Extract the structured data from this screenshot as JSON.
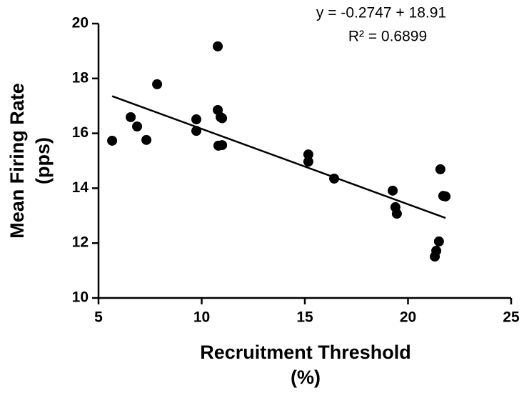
{
  "chart_data": {
    "type": "scatter",
    "annotations": [
      "y = -0.2747 + 18.91",
      "R² = 0.6899"
    ],
    "xlabel": [
      "Recruitment Threshold",
      "(%)"
    ],
    "ylabel": [
      "Mean Firing Rate",
      "(pps)"
    ],
    "x": [
      5.66,
      6.56,
      6.87,
      7.32,
      7.84,
      9.74,
      9.74,
      10.78,
      10.78,
      10.92,
      10.99,
      10.81,
      10.99,
      15.17,
      15.17,
      16.42,
      19.26,
      19.39,
      19.46,
      21.57,
      21.5,
      21.37,
      21.3,
      21.71,
      21.82
    ],
    "values": [
      15.73,
      16.59,
      16.25,
      15.76,
      17.79,
      16.51,
      16.09,
      19.17,
      16.85,
      16.59,
      16.55,
      15.55,
      15.57,
      15.23,
      14.97,
      14.35,
      13.91,
      13.31,
      13.07,
      14.69,
      12.06,
      11.72,
      11.51,
      13.72,
      13.7
    ],
    "color": "#000000",
    "fit": {
      "slope": -0.2747,
      "intercept": 18.91
    },
    "xlim": [
      5,
      25
    ],
    "xticks": [
      5,
      10,
      15,
      20,
      25
    ],
    "ylim": [
      10,
      20
    ],
    "yticks": [
      10,
      12,
      14,
      16,
      18,
      20
    ]
  }
}
